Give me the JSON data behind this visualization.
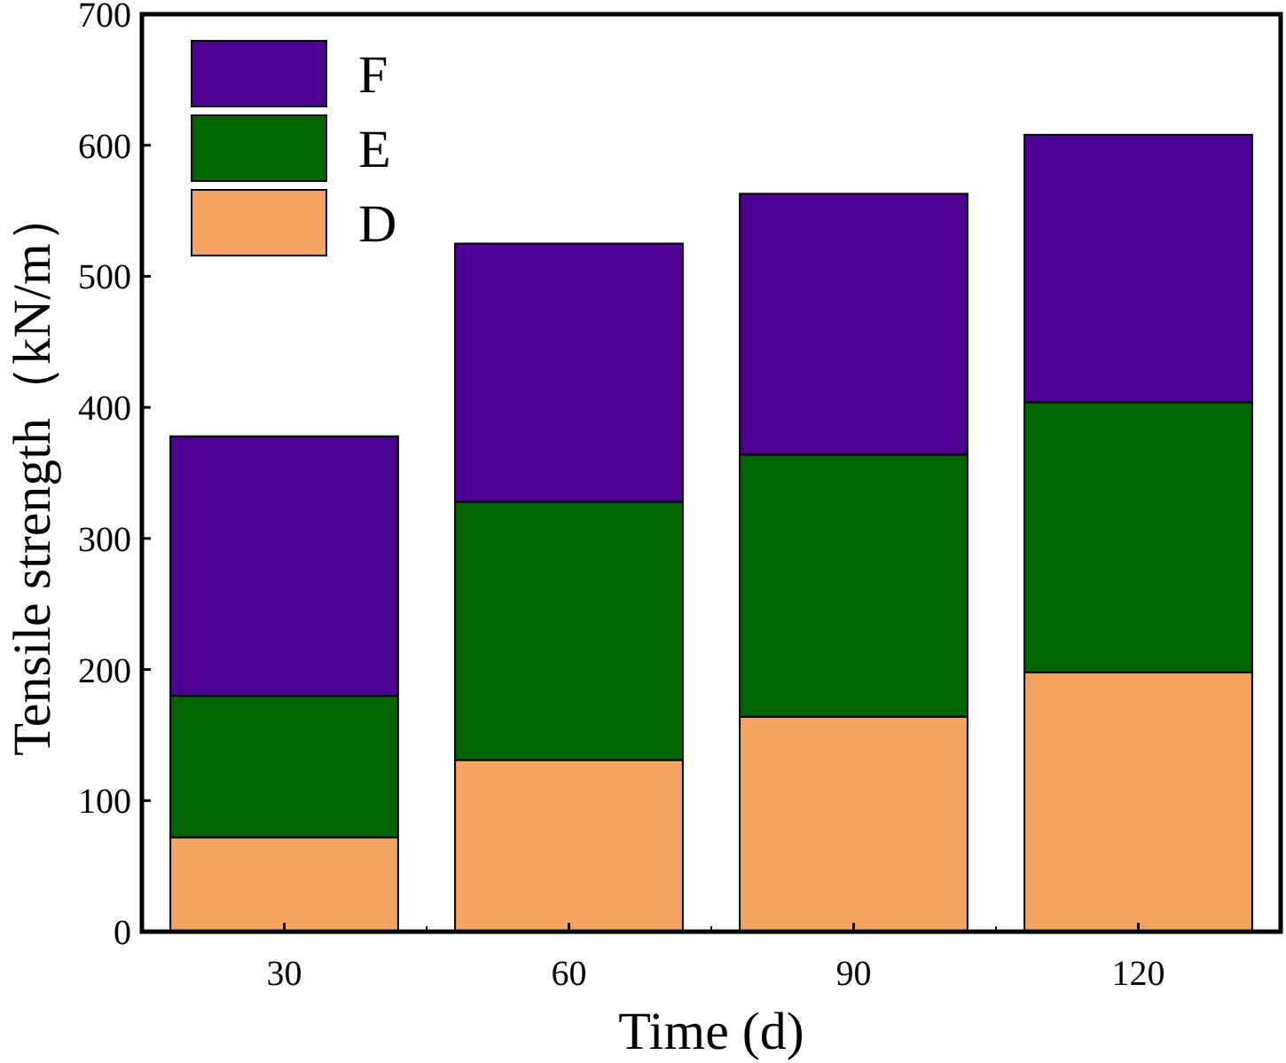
{
  "chart_data": {
    "type": "bar",
    "stacked": true,
    "xlabel": "Time (d)",
    "ylabel": "Tensile strength（kN/m）",
    "categories": [
      "30",
      "60",
      "90",
      "120"
    ],
    "series": [
      {
        "name": "D",
        "color": "#f4a460",
        "values": [
          72,
          131,
          164,
          198
        ]
      },
      {
        "name": "E",
        "color": "#006400",
        "values": [
          108,
          197,
          200,
          206
        ]
      },
      {
        "name": "F",
        "color": "#4b0092",
        "values": [
          198,
          197,
          199,
          204
        ]
      }
    ],
    "ylim": [
      0,
      700
    ],
    "yticks": [
      0,
      100,
      200,
      300,
      400,
      500,
      600,
      700
    ],
    "legend": "top left"
  }
}
